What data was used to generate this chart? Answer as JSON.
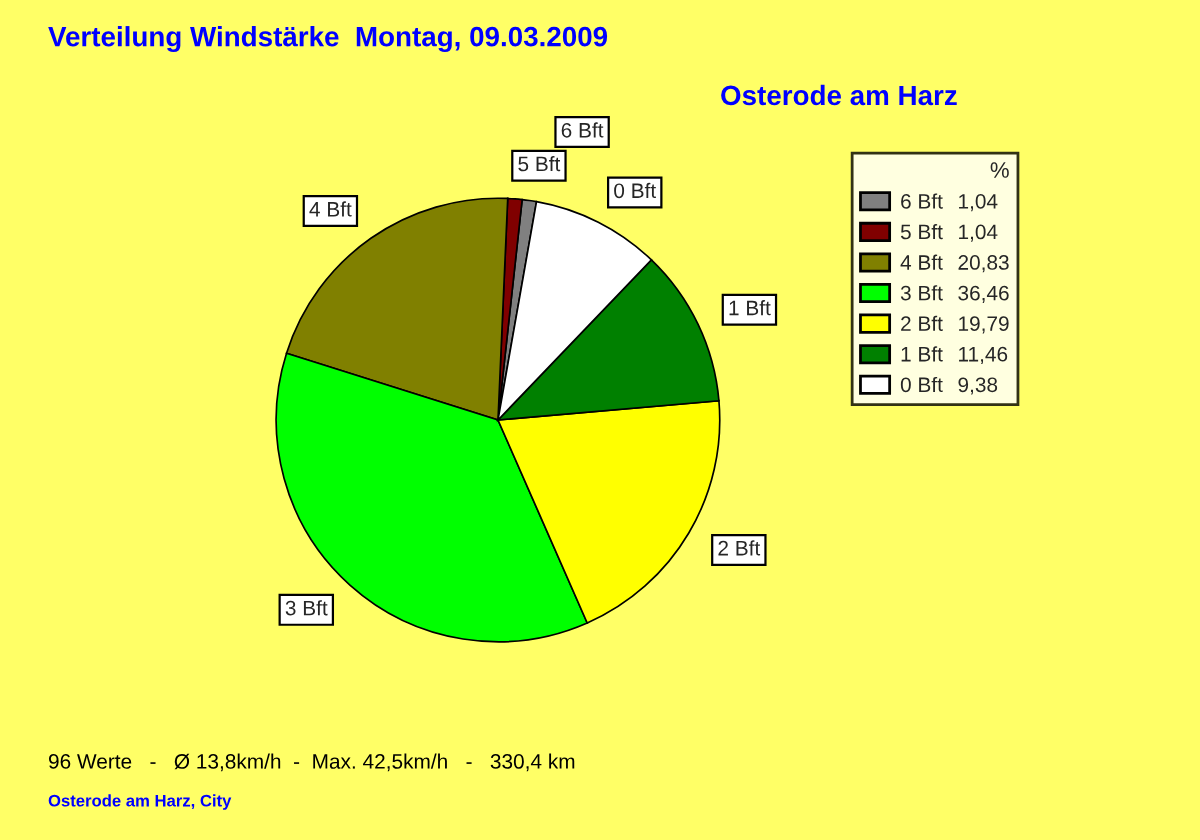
{
  "chart_data": {
    "type": "pie",
    "title": "Verteilung Windstärke  Montag, 09.03.2009",
    "subtitle": "Osterode am Harz",
    "legend_title": "%",
    "legend": "top right",
    "categories": [
      "6 Bft",
      "5 Bft",
      "4 Bft",
      "3 Bft",
      "2 Bft",
      "1 Bft",
      "0 Bft"
    ],
    "values": [
      1.04,
      1.04,
      20.83,
      36.46,
      19.79,
      11.46,
      9.38
    ],
    "value_labels": [
      "1,04",
      "1,04",
      "20,83",
      "36,46",
      "19,79",
      "11,46",
      "9,38"
    ],
    "colors": [
      "#808080",
      "#800000",
      "#808000",
      "#00ff00",
      "#ffff00",
      "#008000",
      "#ffffff"
    ],
    "annotations": [
      "96 Werte   -   Ø 13,8km/h  -  Max. 42,5km/h   -   330,4 km",
      "Osterode am Harz, City"
    ]
  }
}
